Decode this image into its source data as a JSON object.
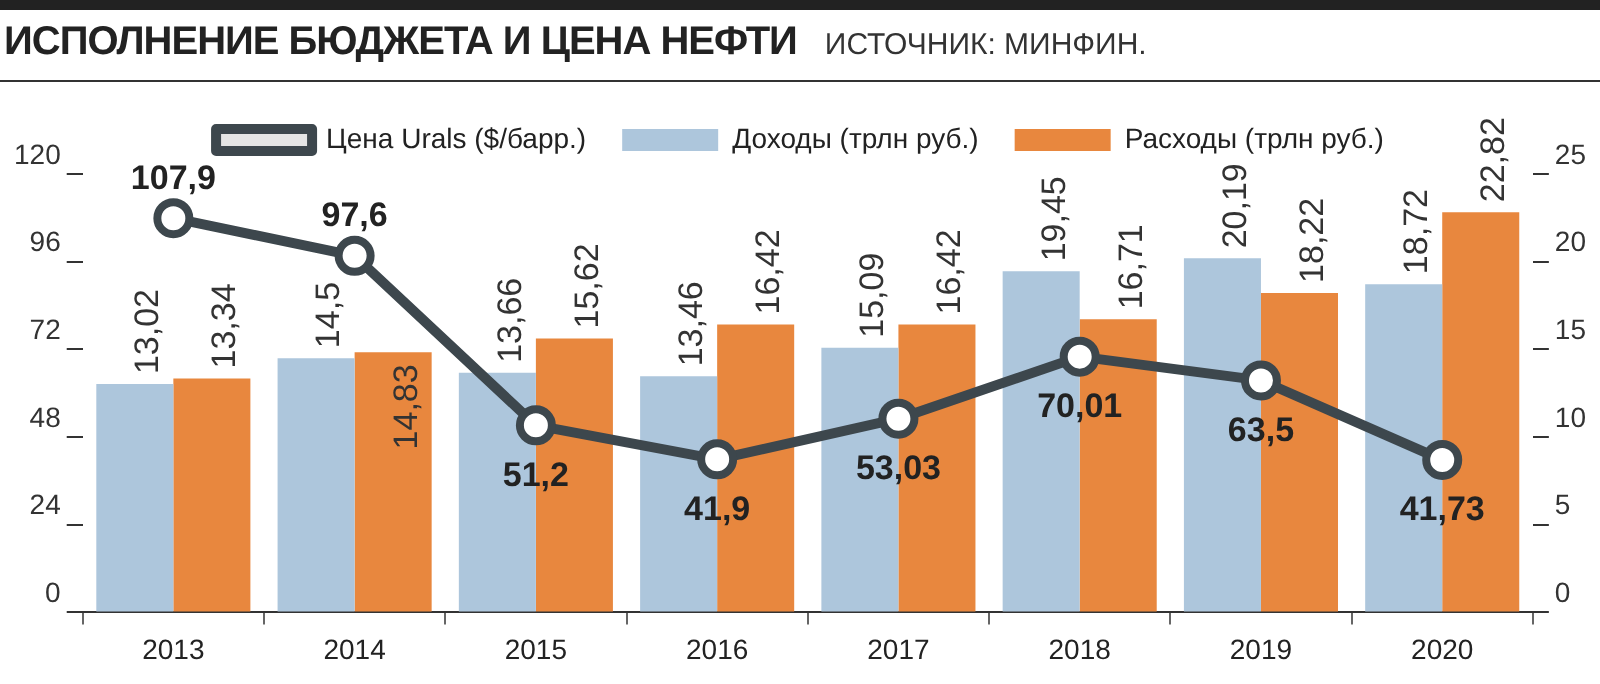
{
  "chart_data": {
    "type": "bar",
    "title": "ИСПОЛНЕНИЕ БЮДЖЕТА И ЦЕНА НЕФТИ",
    "subtitle": "ИСТОЧНИК: МИНФИН.",
    "categories": [
      "2013",
      "2014",
      "2015",
      "2016",
      "2017",
      "2018",
      "2019",
      "2020"
    ],
    "series": [
      {
        "name": "Цена Urals ($/барр.)",
        "type": "line",
        "axis": "y",
        "color": "#3d474d",
        "values": [
          107.9,
          97.6,
          51.2,
          41.9,
          53.03,
          70.01,
          63.5,
          41.73
        ],
        "value_labels": [
          "107,9",
          "97,6",
          "51,2",
          "41,9",
          "53,03",
          "70,01",
          "63,5",
          "41,73"
        ]
      },
      {
        "name": "Доходы (трлн руб.)",
        "axis": "y2",
        "color": "#adc6dc",
        "values": [
          13.02,
          14.5,
          13.66,
          13.46,
          15.09,
          19.45,
          20.19,
          18.72
        ],
        "value_labels": [
          "13,02",
          "14,5",
          "13,66",
          "13,46",
          "15,09",
          "19,45",
          "20,19",
          "18,72"
        ]
      },
      {
        "name": "Расходы (трлн руб.)",
        "axis": "y2",
        "color": "#e8873e",
        "values": [
          13.34,
          14.83,
          15.62,
          16.42,
          16.42,
          16.71,
          18.22,
          22.82
        ],
        "value_labels": [
          "13,34",
          "14,83",
          "15,62",
          "16,42",
          "16,42",
          "16,71",
          "18,22",
          "22,82"
        ]
      }
    ],
    "marker": "circle",
    "legend": "top",
    "ylim": [
      0,
      120
    ],
    "yticks": [
      0,
      24,
      48,
      72,
      96,
      120
    ],
    "y2lim": [
      0,
      25
    ],
    "y2ticks": [
      0,
      5,
      10,
      15,
      20,
      25
    ]
  }
}
